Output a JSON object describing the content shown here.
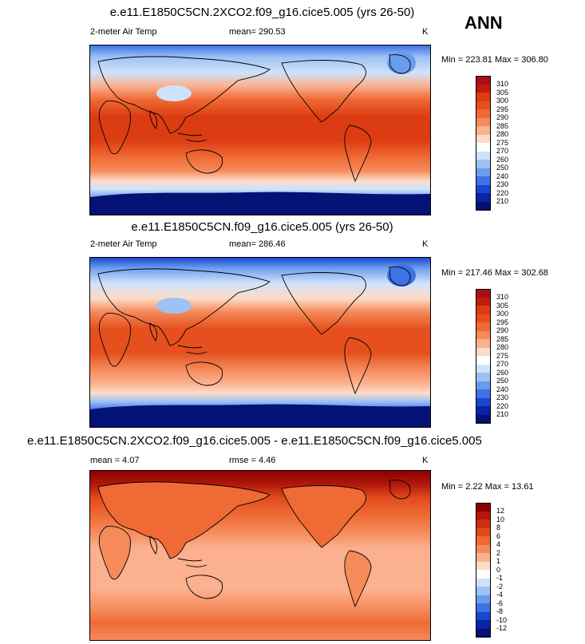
{
  "season": "ANN",
  "unit": "K",
  "panels": [
    {
      "title": "e.e11.E1850C5CN.2XCO2.f09_g16.cice5.005 (yrs 26-50)",
      "variable": "2-meter Air Temp",
      "mean_text": "mean= 290.53",
      "unit": "K",
      "minmax": "Min = 223.81 Max = 306.80",
      "scale": "abs"
    },
    {
      "title": "e.e11.E1850C5CN.f09_g16.cice5.005 (yrs 26-50)",
      "variable": "2-meter Air Temp",
      "mean_text": "mean= 286.46",
      "unit": "K",
      "minmax": "Min = 217.46 Max = 302.68",
      "scale": "abs"
    },
    {
      "title": "e.e11.E1850C5CN.2XCO2.f09_g16.cice5.005 - e.e11.E1850C5CN.f09_g16.cice5.005",
      "mean_text": "mean =  4.07",
      "rmse_text": "rmse =  4.46",
      "unit": "K",
      "minmax": "Min =  2.22 Max = 13.61",
      "scale": "diff"
    }
  ],
  "scales": {
    "abs": {
      "labels": [
        "310",
        "305",
        "300",
        "295",
        "290",
        "285",
        "280",
        "275",
        "270",
        "260",
        "250",
        "240",
        "230",
        "220",
        "210"
      ],
      "colors": [
        "#a50f15",
        "#c21b0c",
        "#dc3c12",
        "#e5501e",
        "#ef6a34",
        "#f58a5a",
        "#fbb08f",
        "#fddcc8",
        "#ffffff",
        "#cfe2fb",
        "#9dc2f4",
        "#6a9cee",
        "#3f72e6",
        "#1a47cf",
        "#0a23a8",
        "#031274"
      ]
    },
    "diff": {
      "labels": [
        "12",
        "10",
        "8",
        "6",
        "4",
        "2",
        "1",
        "0",
        "-1",
        "-2",
        "-4",
        "-6",
        "-8",
        "-10",
        "-12"
      ],
      "colors": [
        "#8b0000",
        "#b2180b",
        "#cd2f10",
        "#e14b1c",
        "#ef6a34",
        "#f58a5a",
        "#fbb08f",
        "#fddcc8",
        "#ffffff",
        "#cfe2fb",
        "#9dc2f4",
        "#6a9cee",
        "#3f72e6",
        "#1a47cf",
        "#0a23a8",
        "#031274"
      ]
    }
  }
}
